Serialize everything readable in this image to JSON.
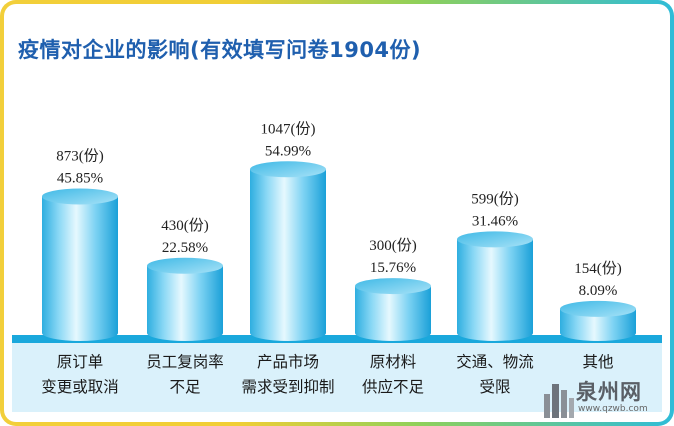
{
  "title": "疫情对企业的影响(有效填写问卷1904份)",
  "colors": {
    "bar_light": "#e4f7fd",
    "bar_mid": "#57c6ee",
    "bar_dark": "#1aa0d8",
    "baseline": "#1aa8dc",
    "band": "#daf1fb",
    "title": "#1f5fae"
  },
  "chart_data": {
    "type": "bar",
    "title": "疫情对企业的影响(有效填写问卷1904份)",
    "categories": [
      [
        "原订单",
        "变更或取消"
      ],
      [
        "员工复岗率",
        "不足"
      ],
      [
        "产品市场",
        "需求受到抑制"
      ],
      [
        "原材料",
        "供应不足"
      ],
      [
        "交通、物流",
        "受限"
      ],
      [
        "其他"
      ]
    ],
    "values": [
      873,
      430,
      1047,
      300,
      599,
      154
    ],
    "percent_labels": [
      "45.85%",
      "22.58%",
      "54.99%",
      "15.76%",
      "31.46%",
      "8.09%"
    ],
    "count_labels": [
      "873(份)",
      "430(份)",
      "1047(份)",
      "300(份)",
      "599(份)",
      "154(份)"
    ],
    "ylim": [
      0,
      1100
    ],
    "grid": false,
    "legend": "none"
  },
  "watermark": {
    "name": "泉州网",
    "url": "www.qzwb.com"
  }
}
